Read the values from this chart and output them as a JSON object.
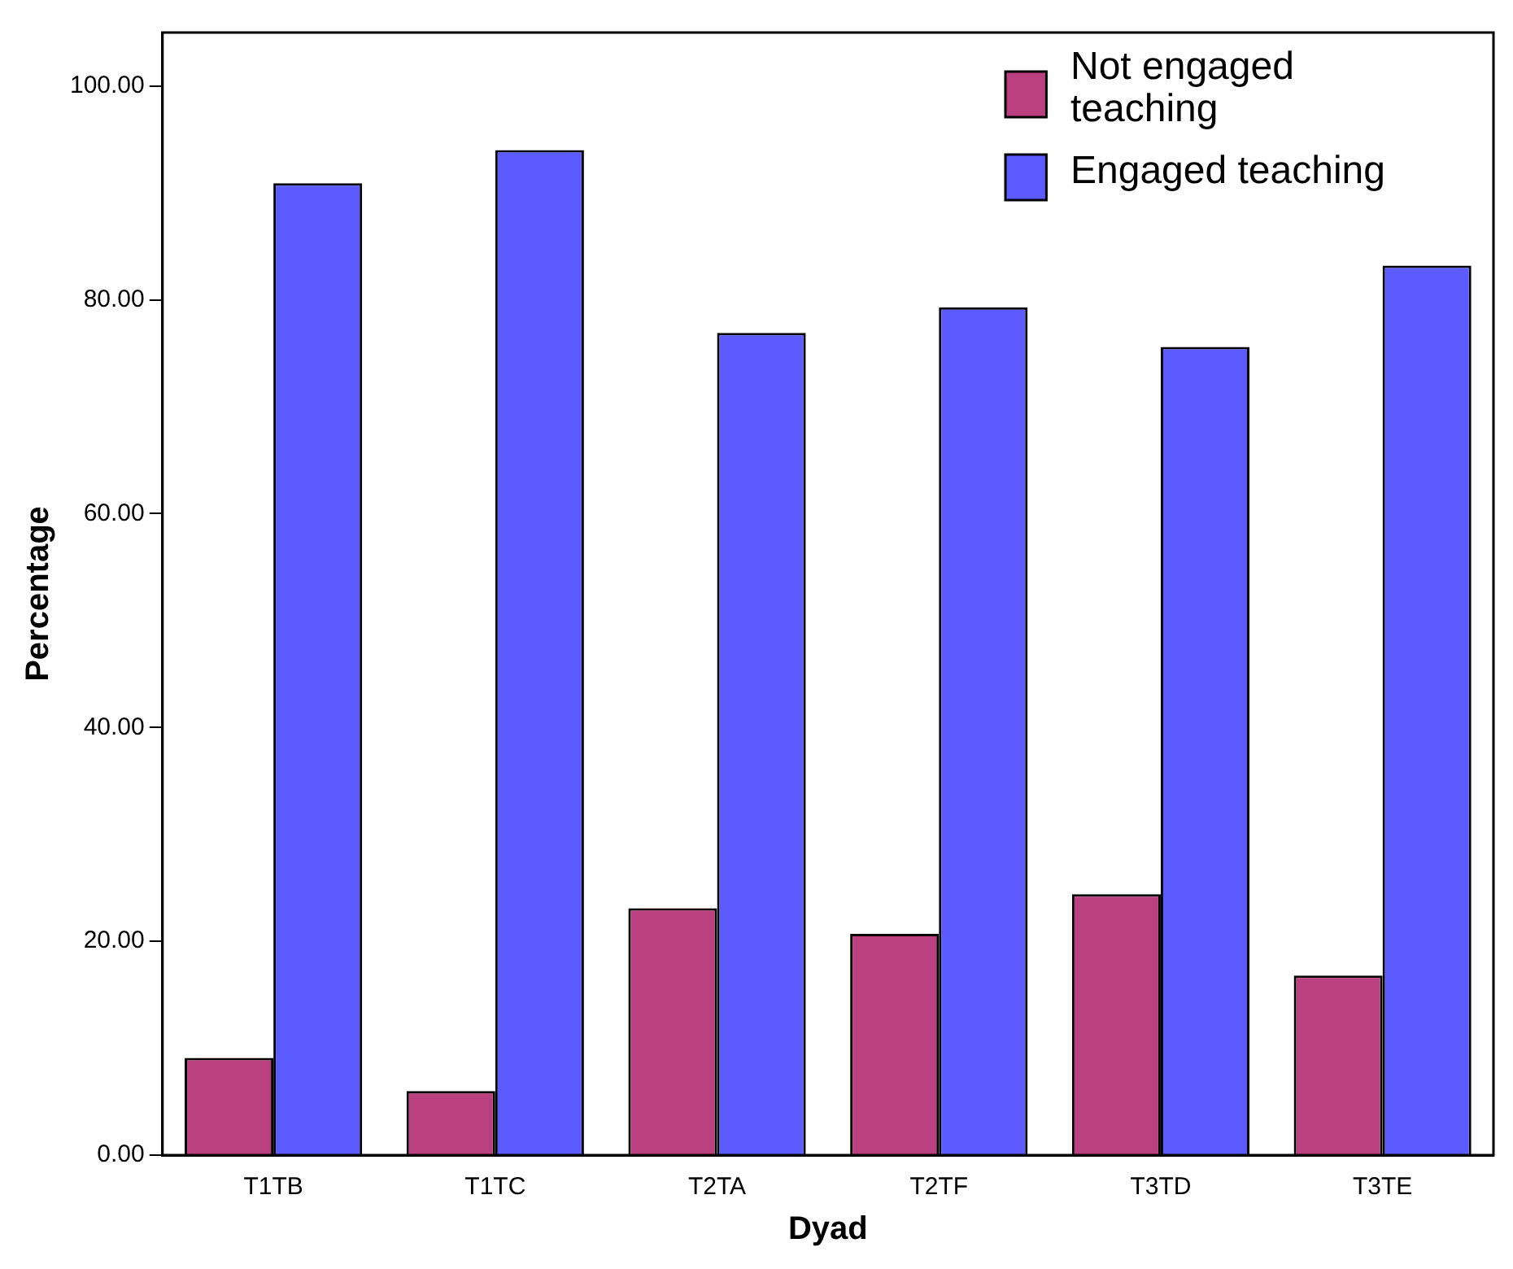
{
  "chart_data": {
    "type": "bar",
    "xlabel": "Dyad",
    "ylabel": "Percentage",
    "categories": [
      "T1TB",
      "T1TC",
      "T2TA",
      "T2TF",
      "T3TD",
      "T3TE"
    ],
    "series": [
      {
        "name": "Not engaged teaching",
        "color": "#bb4080",
        "values": [
          9.1,
          6.0,
          23.1,
          20.7,
          24.4,
          16.8
        ]
      },
      {
        "name": "Engaged teaching",
        "color": "#5b5bff",
        "values": [
          90.9,
          94.0,
          76.9,
          79.3,
          75.6,
          83.2
        ]
      }
    ],
    "ylim": [
      0,
      105
    ],
    "yticks": [
      {
        "value": 0,
        "label": "0.00"
      },
      {
        "value": 20,
        "label": "20.00"
      },
      {
        "value": 40,
        "label": "40.00"
      },
      {
        "value": 60,
        "label": "60.00"
      },
      {
        "value": 80,
        "label": "80.00"
      },
      {
        "value": 100,
        "label": "100.00"
      }
    ],
    "grid": false,
    "legend": "top right"
  }
}
